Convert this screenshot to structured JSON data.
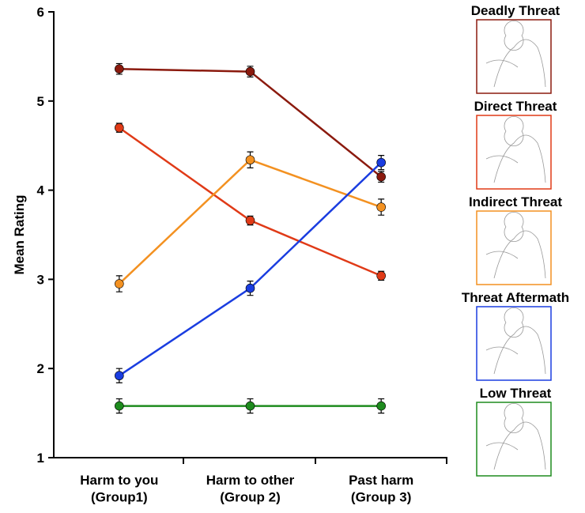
{
  "chart_data": {
    "type": "line",
    "y_label": "Mean  Rating",
    "categories": [
      "Harm to you\n(Group1)",
      "Harm to other\n(Group 2)",
      "Past harm\n(Group 3)"
    ],
    "series": [
      {
        "name": "Deadly Threat",
        "color": "#8b1a0e",
        "values": [
          5.36,
          5.33,
          4.15
        ],
        "errors": [
          0.06,
          0.06,
          0.06
        ]
      },
      {
        "name": "Direct Threat",
        "color": "#e03a17",
        "values": [
          4.7,
          3.66,
          3.04
        ],
        "errors": [
          0.05,
          0.05,
          0.05
        ]
      },
      {
        "name": "Indirect Threat",
        "color": "#f39121",
        "values": [
          2.95,
          4.34,
          3.81
        ],
        "errors": [
          0.09,
          0.09,
          0.09
        ]
      },
      {
        "name": "Threat Aftermath",
        "color": "#1a3de0",
        "values": [
          1.92,
          2.9,
          4.31
        ],
        "errors": [
          0.08,
          0.08,
          0.08
        ]
      },
      {
        "name": "Low Threat",
        "color": "#1e8b1e",
        "values": [
          1.58,
          1.58,
          1.58
        ],
        "errors": [
          0.08,
          0.08,
          0.08
        ]
      }
    ],
    "ylim": [
      1,
      6
    ],
    "yticks": [
      1,
      2,
      3,
      4,
      5,
      6
    ]
  }
}
